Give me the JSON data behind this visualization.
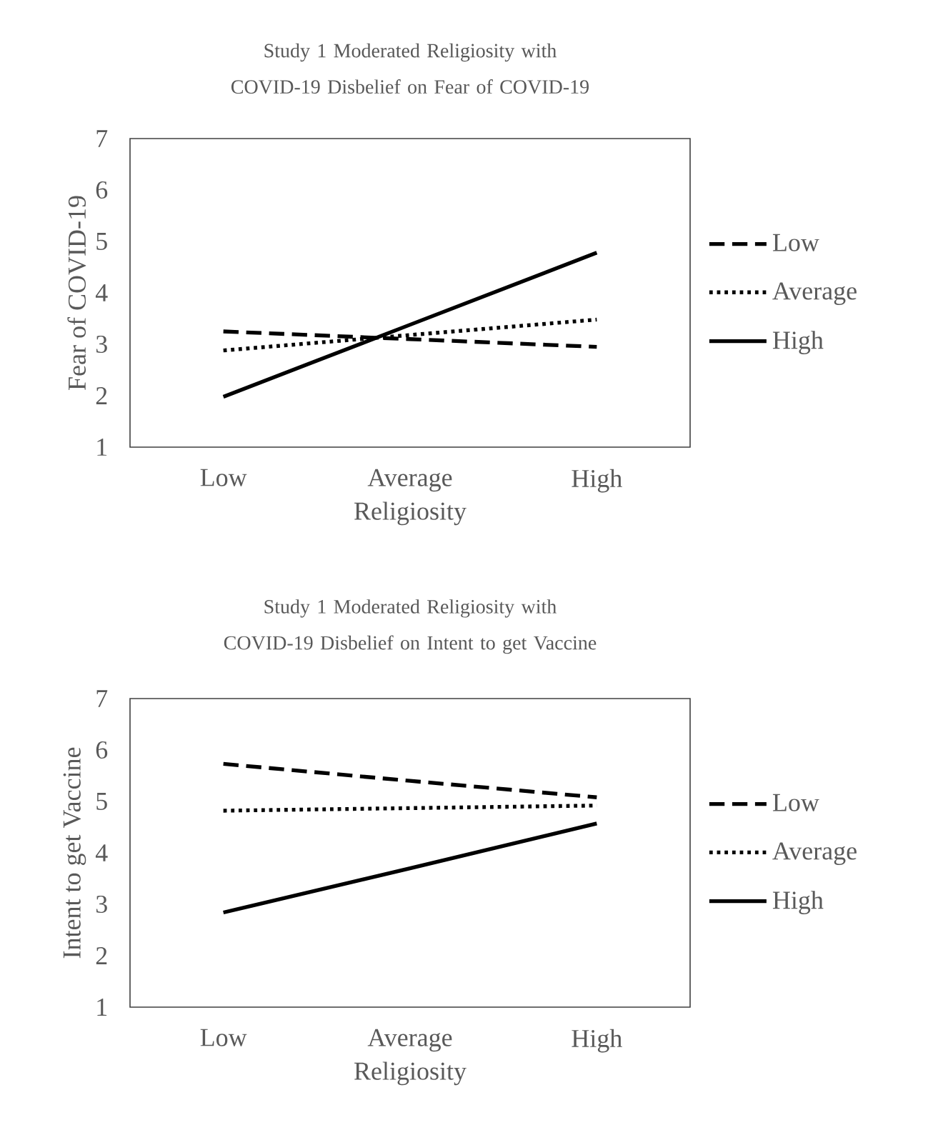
{
  "chart_data": [
    {
      "type": "line",
      "title": "Study 1 Moderated Religiosity with COVID-19 Disbelief on Fear of COVID-19",
      "xlabel": "Religiosity",
      "ylabel": "Fear of COVID-19",
      "categories": [
        "Low",
        "Average",
        "High"
      ],
      "ylim": [
        1,
        7
      ],
      "yticks": [
        1,
        2,
        3,
        4,
        5,
        6,
        7
      ],
      "grid": false,
      "legend": "right",
      "marker": "none",
      "series": [
        {
          "name": "Low",
          "color": "#000000",
          "line_style": "dashed",
          "values": [
            3.25,
            3.1,
            2.95
          ]
        },
        {
          "name": "Average",
          "color": "#000000",
          "line_style": "dotted",
          "values": [
            2.88,
            3.18,
            3.48
          ]
        },
        {
          "name": "High",
          "color": "#000000",
          "line_style": "solid",
          "values": [
            1.98,
            3.38,
            4.78
          ]
        }
      ]
    },
    {
      "type": "line",
      "title": "Study 1 Moderated Religiosity with COVID-19 Disbelief on Intent to get Vaccine",
      "xlabel": "Religiosity",
      "ylabel": "Intent to get Vaccine",
      "categories": [
        "Low",
        "Average",
        "High"
      ],
      "ylim": [
        1,
        7
      ],
      "yticks": [
        1,
        2,
        3,
        4,
        5,
        6,
        7
      ],
      "grid": false,
      "legend": "right",
      "marker": "none",
      "series": [
        {
          "name": "Low",
          "color": "#000000",
          "line_style": "dashed",
          "values": [
            5.73,
            5.4,
            5.08
          ]
        },
        {
          "name": "Average",
          "color": "#000000",
          "line_style": "dotted",
          "values": [
            4.82,
            4.87,
            4.92
          ]
        },
        {
          "name": "High",
          "color": "#000000",
          "line_style": "solid",
          "values": [
            2.84,
            3.7,
            4.57
          ]
        }
      ]
    }
  ]
}
